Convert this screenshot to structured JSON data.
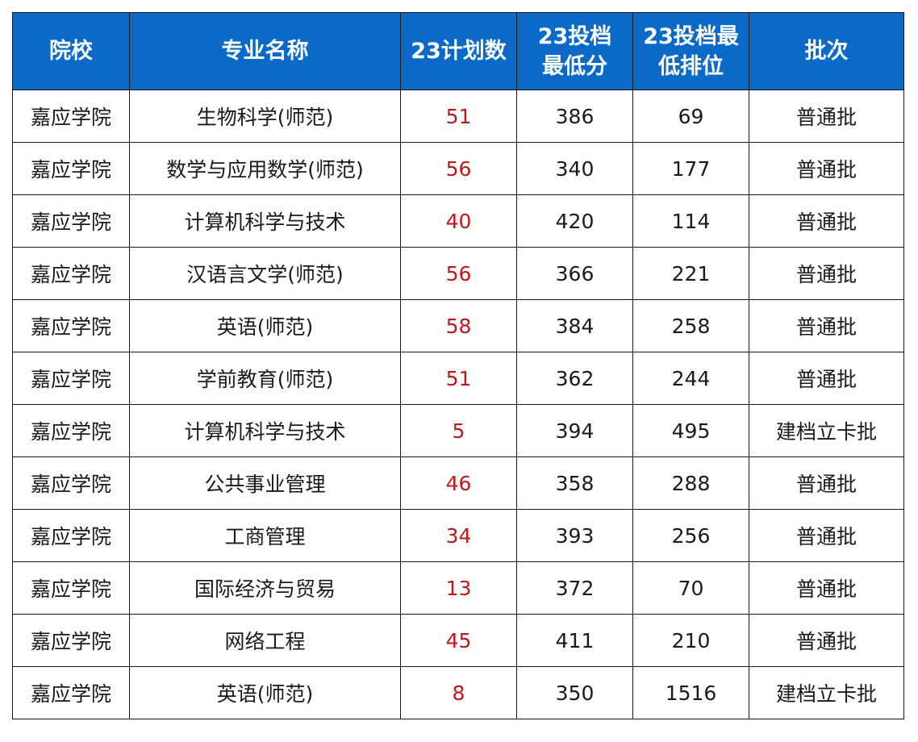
{
  "headers": [
    {
      "lines": [
        "院校"
      ]
    },
    {
      "lines": [
        "专业名称"
      ]
    },
    {
      "lines": [
        "23计划数"
      ]
    },
    {
      "lines": [
        "23投档",
        "最低分"
      ]
    },
    {
      "lines": [
        "23投档最",
        "低排位"
      ]
    },
    {
      "lines": [
        "批次"
      ]
    }
  ],
  "rows": [
    {
      "school": "嘉应学院",
      "major": "生物科学(师范)",
      "plan": "51",
      "min_score": "386",
      "min_rank": "69",
      "batch": "普通批"
    },
    {
      "school": "嘉应学院",
      "major": "数学与应用数学(师范)",
      "plan": "56",
      "min_score": "340",
      "min_rank": "177",
      "batch": "普通批"
    },
    {
      "school": "嘉应学院",
      "major": "计算机科学与技术",
      "plan": "40",
      "min_score": "420",
      "min_rank": "114",
      "batch": "普通批"
    },
    {
      "school": "嘉应学院",
      "major": "汉语言文学(师范)",
      "plan": "56",
      "min_score": "366",
      "min_rank": "221",
      "batch": "普通批"
    },
    {
      "school": "嘉应学院",
      "major": "英语(师范)",
      "plan": "58",
      "min_score": "384",
      "min_rank": "258",
      "batch": "普通批"
    },
    {
      "school": "嘉应学院",
      "major": "学前教育(师范)",
      "plan": "51",
      "min_score": "362",
      "min_rank": "244",
      "batch": "普通批"
    },
    {
      "school": "嘉应学院",
      "major": "计算机科学与技术",
      "plan": "5",
      "min_score": "394",
      "min_rank": "495",
      "batch": "建档立卡批"
    },
    {
      "school": "嘉应学院",
      "major": "公共事业管理",
      "plan": "46",
      "min_score": "358",
      "min_rank": "288",
      "batch": "普通批"
    },
    {
      "school": "嘉应学院",
      "major": "工商管理",
      "plan": "34",
      "min_score": "393",
      "min_rank": "256",
      "batch": "普通批"
    },
    {
      "school": "嘉应学院",
      "major": "国际经济与贸易",
      "plan": "13",
      "min_score": "372",
      "min_rank": "70",
      "batch": "普通批"
    },
    {
      "school": "嘉应学院",
      "major": "网络工程",
      "plan": "45",
      "min_score": "411",
      "min_rank": "210",
      "batch": "普通批"
    },
    {
      "school": "嘉应学院",
      "major": "英语(师范)",
      "plan": "8",
      "min_score": "350",
      "min_rank": "1516",
      "batch": "建档立卡批"
    }
  ],
  "colors": {
    "header_bg": "#0b69c7",
    "header_text": "#ffffff",
    "plan_text": "#c0171c",
    "body_text": "#1a1a1a"
  }
}
